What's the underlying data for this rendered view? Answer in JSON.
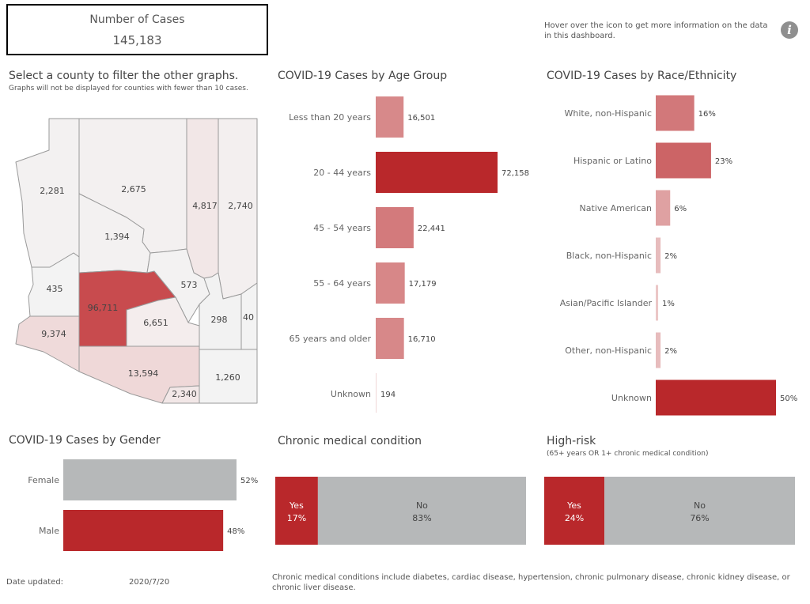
{
  "summary": {
    "label": "Number of Cases",
    "value": "145,183"
  },
  "info": {
    "text": "Hover over the icon to get more information on the data in this dashboard.",
    "icon": "info-icon"
  },
  "map": {
    "title": "Select a county to filter the other graphs.",
    "subtitle": "Graphs will not be displayed for counties with fewer than 10 cases.",
    "counties": [
      {
        "name": "mohave",
        "value": "2,281"
      },
      {
        "name": "coconino",
        "value": "2,675"
      },
      {
        "name": "navajo",
        "value": "4,817"
      },
      {
        "name": "apache",
        "value": "2,740"
      },
      {
        "name": "yavapai",
        "value": "1,394"
      },
      {
        "name": "la-paz",
        "value": "435"
      },
      {
        "name": "maricopa",
        "value": "96,711"
      },
      {
        "name": "gila",
        "value": "573"
      },
      {
        "name": "yuma",
        "value": "9,374"
      },
      {
        "name": "pinal",
        "value": "6,651"
      },
      {
        "name": "graham",
        "value": "298"
      },
      {
        "name": "greenlee",
        "value": "40"
      },
      {
        "name": "pima",
        "value": "13,594"
      },
      {
        "name": "santa-cruz",
        "value": "2,340"
      },
      {
        "name": "cochise",
        "value": "1,260"
      }
    ]
  },
  "chart_data": [
    {
      "type": "bar",
      "title": "COVID-19 Cases by Age Group",
      "categories": [
        "Less than 20 years",
        "20 - 44 years",
        "45 - 54 years",
        "55 - 64 years",
        "65 years and older",
        "Unknown"
      ],
      "values": [
        16501,
        72158,
        22441,
        17179,
        16710,
        194
      ],
      "labels": [
        "16,501",
        "72,158",
        "22,441",
        "17,179",
        "16,710",
        "194"
      ],
      "xlim": [
        0,
        72158
      ]
    },
    {
      "type": "bar",
      "title": "COVID-19 Cases by Race/Ethnicity",
      "categories": [
        "White, non-Hispanic",
        "Hispanic or Latino",
        "Native American",
        "Black, non-Hispanic",
        "Asian/Pacific Islander",
        "Other, non-Hispanic",
        "Unknown"
      ],
      "values": [
        16,
        23,
        6,
        2,
        1,
        2,
        50
      ],
      "labels": [
        "16%",
        "23%",
        "6%",
        "2%",
        "1%",
        "2%",
        "50%"
      ],
      "xlim": [
        0,
        50
      ]
    },
    {
      "type": "bar",
      "title": "COVID-19 Cases by Gender",
      "categories": [
        "Female",
        "Male"
      ],
      "values": [
        52,
        48
      ],
      "labels": [
        "52%",
        "48%"
      ],
      "colors": [
        "#b6b8b9",
        "#b9282b"
      ],
      "xlim": [
        0,
        52
      ]
    },
    {
      "type": "bar",
      "title": "Chronic medical condition",
      "categories": [
        "Yes",
        "No"
      ],
      "values": [
        17,
        83
      ],
      "labels": [
        "17%",
        "83%"
      ]
    },
    {
      "type": "bar",
      "title": "High-risk",
      "subtitle": "(65+ years OR 1+ chronic medical condition)",
      "categories": [
        "Yes",
        "No"
      ],
      "values": [
        24,
        76
      ],
      "labels": [
        "24%",
        "76%"
      ]
    }
  ],
  "colors": {
    "accent": "#b9282b",
    "grey": "#b6b8b9",
    "light": "#f2e6e6"
  },
  "footer": {
    "date_label": "Date updated:",
    "date_value": "2020/7/20",
    "note": "Chronic medical conditions include diabetes, cardiac disease, hypertension, chronic pulmonary disease, chronic kidney disease, or chronic liver disease."
  }
}
